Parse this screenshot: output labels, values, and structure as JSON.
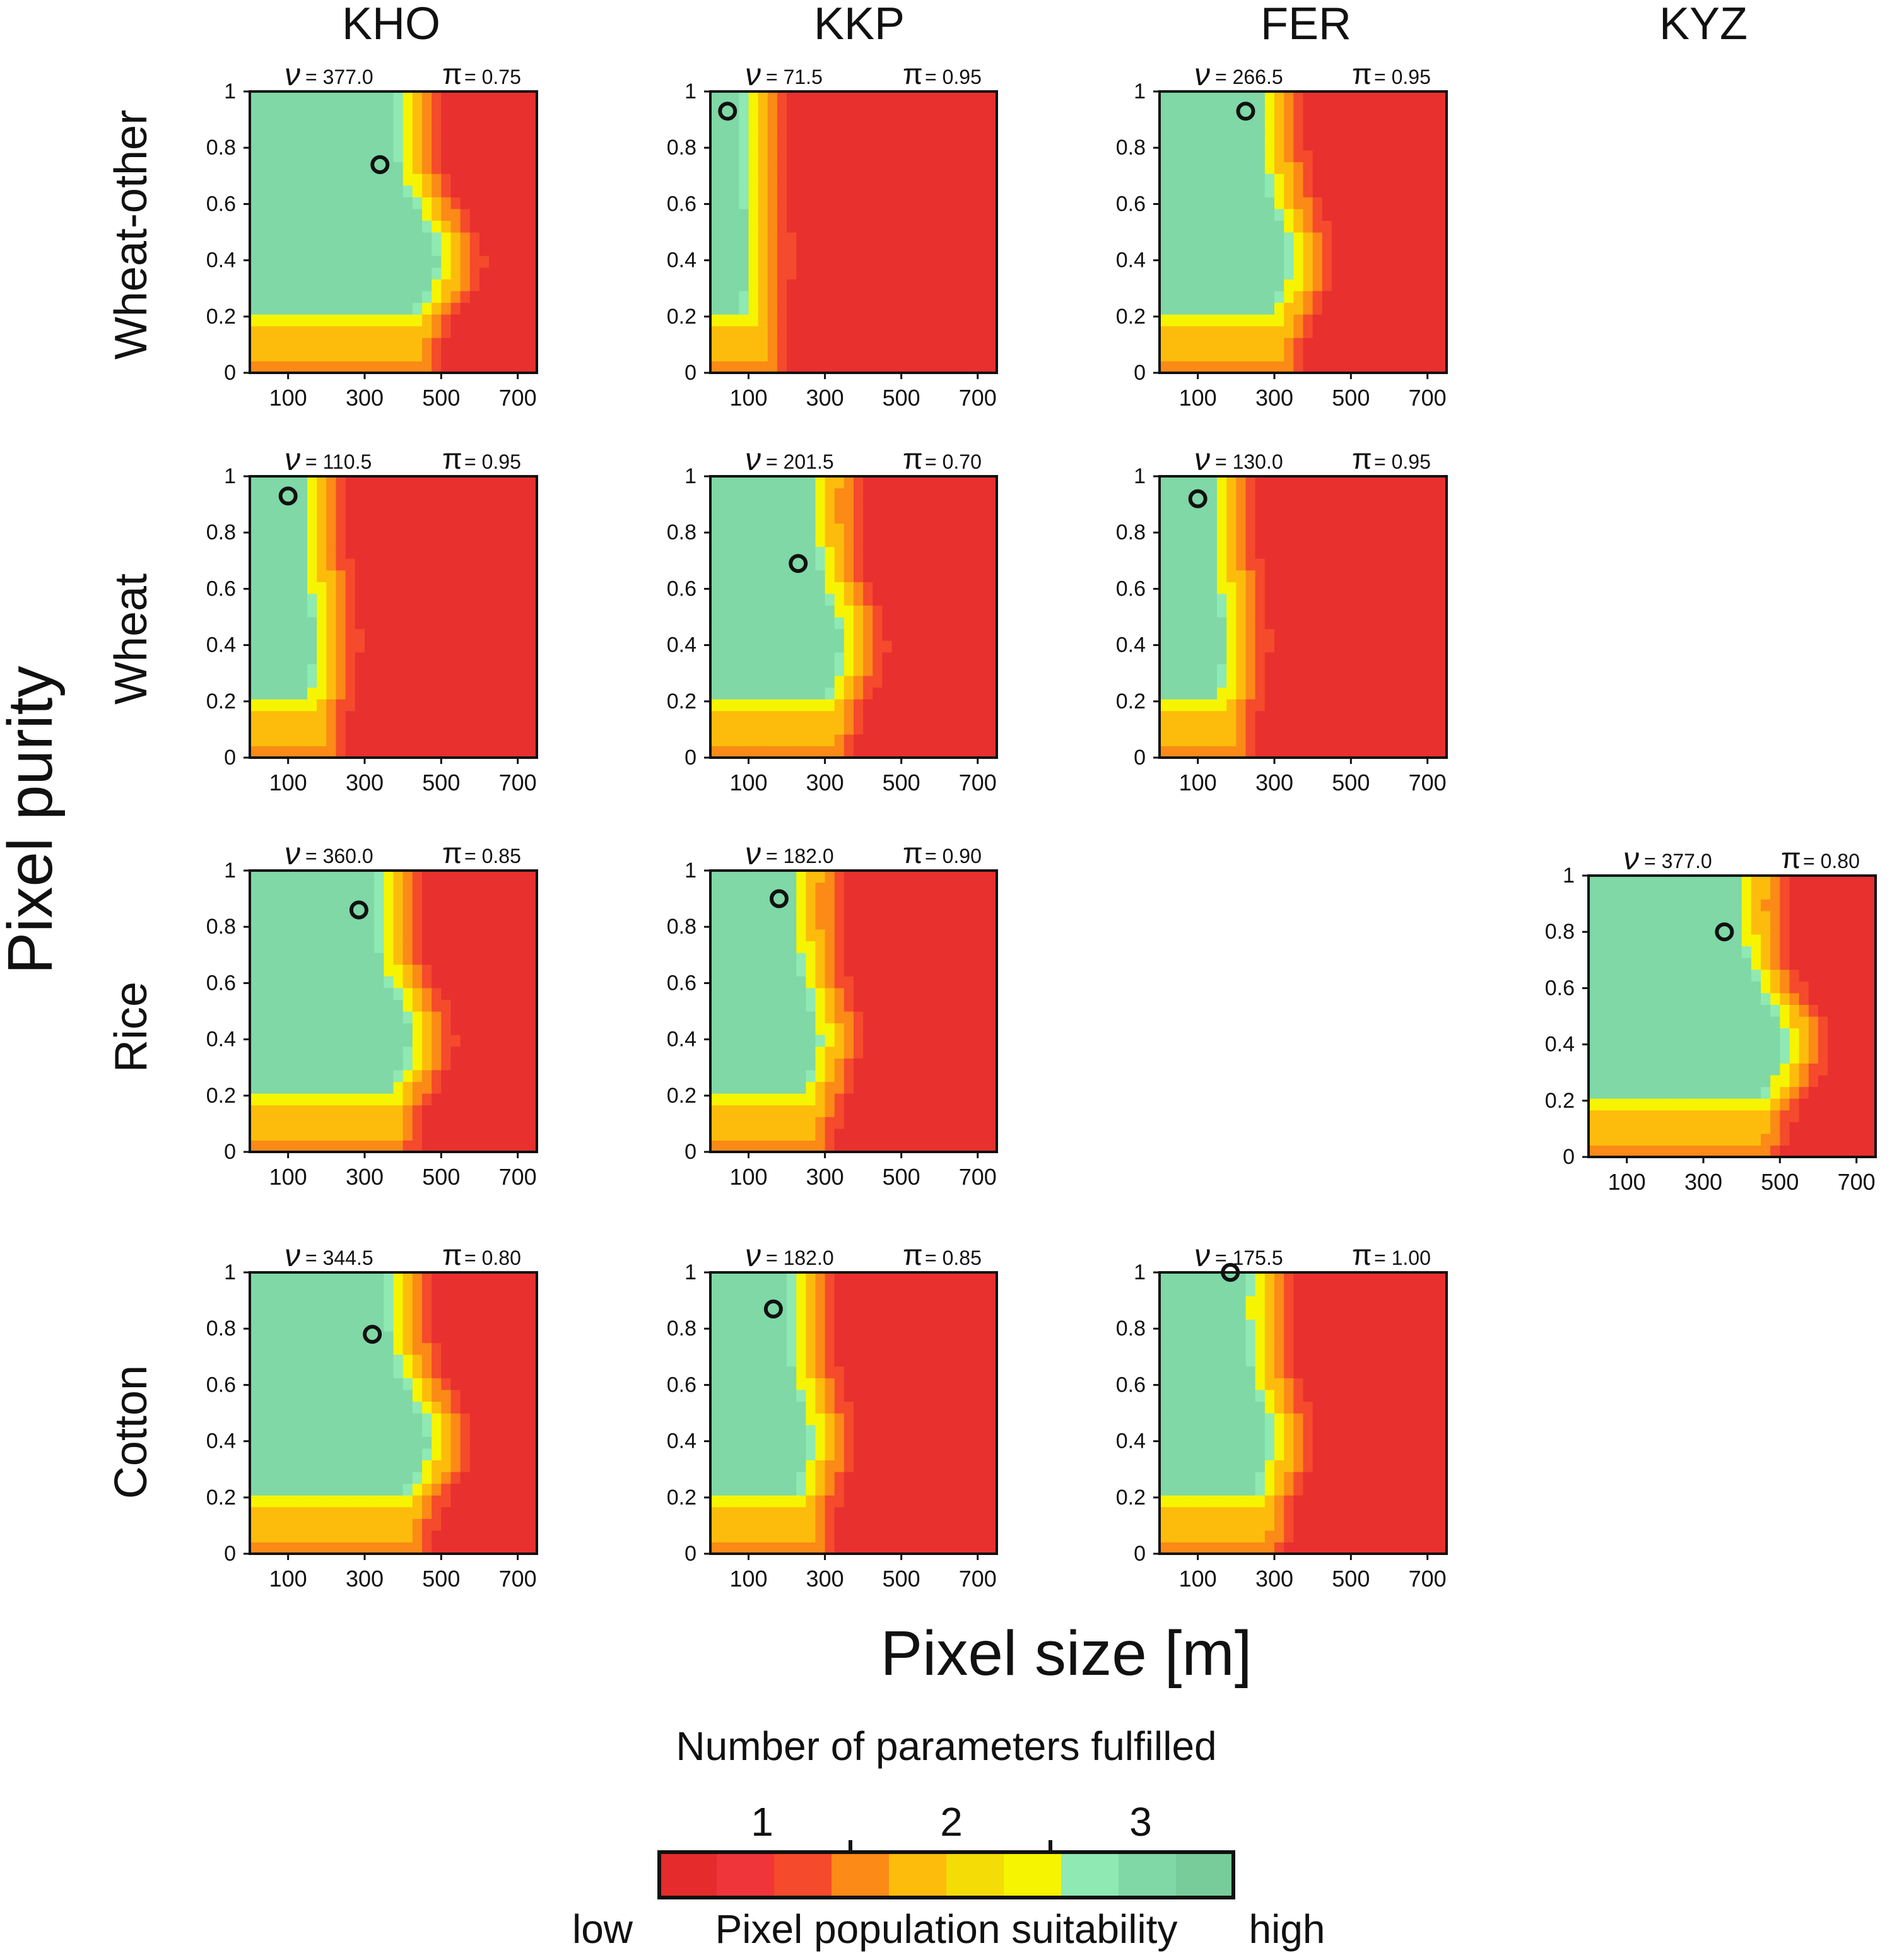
{
  "figure": {
    "ylabel": "Pixel purity",
    "xlabel": "Pixel size [m]",
    "columns": [
      "KHO",
      "KKP",
      "FER",
      "KYZ"
    ],
    "rows": [
      "Wheat-other",
      "Wheat",
      "Rice",
      "Cotton"
    ],
    "nu_symbol": "ν",
    "pi_symbol": "π",
    "x_ticks": [
      "100",
      "300",
      "500",
      "700"
    ],
    "y_ticks": [
      "0",
      "0.2",
      "0.4",
      "0.6",
      "0.8",
      "1"
    ]
  },
  "legend": {
    "title": "Number of parameters fulfilled",
    "counts": [
      "1",
      "2",
      "3"
    ],
    "low_label": "low",
    "mid_label": "Pixel population suitability",
    "high_label": "high",
    "colors": [
      "#e52b2b",
      "#f0353a",
      "#f54a2c",
      "#fb8a17",
      "#fdbc0c",
      "#f4dc07",
      "#f6f400",
      "#8ee9b3",
      "#7fd8a6",
      "#78cc99"
    ]
  },
  "chart_data": [
    {
      "type": "heatmap",
      "column": "KHO",
      "row": "Wheat-other",
      "nu": "= 377.0",
      "pi": "= 0.75",
      "optimum": {
        "x": 340,
        "y": 0.74
      },
      "xlim": [
        0,
        750
      ],
      "ylim": [
        0,
        1
      ]
    },
    {
      "type": "heatmap",
      "column": "KKP",
      "row": "Wheat-other",
      "nu": "= 71.5",
      "pi": "= 0.95",
      "optimum": {
        "x": 45,
        "y": 0.93
      },
      "xlim": [
        0,
        750
      ],
      "ylim": [
        0,
        1
      ]
    },
    {
      "type": "heatmap",
      "column": "FER",
      "row": "Wheat-other",
      "nu": "= 266.5",
      "pi": "= 0.95",
      "optimum": {
        "x": 225,
        "y": 0.93
      },
      "xlim": [
        0,
        750
      ],
      "ylim": [
        0,
        1
      ]
    },
    {
      "type": "heatmap",
      "column": "KHO",
      "row": "Wheat",
      "nu": "= 110.5",
      "pi": "= 0.95",
      "optimum": {
        "x": 100,
        "y": 0.93
      },
      "xlim": [
        0,
        750
      ],
      "ylim": [
        0,
        1
      ]
    },
    {
      "type": "heatmap",
      "column": "KKP",
      "row": "Wheat",
      "nu": "= 201.5",
      "pi": "= 0.70",
      "optimum": {
        "x": 230,
        "y": 0.69
      },
      "xlim": [
        0,
        750
      ],
      "ylim": [
        0,
        1
      ]
    },
    {
      "type": "heatmap",
      "column": "FER",
      "row": "Wheat",
      "nu": "= 130.0",
      "pi": "= 0.95",
      "optimum": {
        "x": 100,
        "y": 0.92
      },
      "xlim": [
        0,
        750
      ],
      "ylim": [
        0,
        1
      ]
    },
    {
      "type": "heatmap",
      "column": "KHO",
      "row": "Rice",
      "nu": "= 360.0",
      "pi": "= 0.85",
      "optimum": {
        "x": 285,
        "y": 0.86
      },
      "xlim": [
        0,
        750
      ],
      "ylim": [
        0,
        1
      ]
    },
    {
      "type": "heatmap",
      "column": "KKP",
      "row": "Rice",
      "nu": "= 182.0",
      "pi": "= 0.90",
      "optimum": {
        "x": 180,
        "y": 0.9
      },
      "xlim": [
        0,
        750
      ],
      "ylim": [
        0,
        1
      ]
    },
    {
      "type": "heatmap",
      "column": "KYZ",
      "row": "Rice",
      "nu": "= 377.0",
      "pi": "= 0.80",
      "optimum": {
        "x": 355,
        "y": 0.8
      },
      "xlim": [
        0,
        750
      ],
      "ylim": [
        0,
        1
      ]
    },
    {
      "type": "heatmap",
      "column": "KHO",
      "row": "Cotton",
      "nu": "= 344.5",
      "pi": "= 0.80",
      "optimum": {
        "x": 320,
        "y": 0.78
      },
      "xlim": [
        0,
        750
      ],
      "ylim": [
        0,
        1
      ]
    },
    {
      "type": "heatmap",
      "column": "KKP",
      "row": "Cotton",
      "nu": "= 182.0",
      "pi": "= 0.85",
      "optimum": {
        "x": 165,
        "y": 0.87
      },
      "xlim": [
        0,
        750
      ],
      "ylim": [
        0,
        1
      ]
    },
    {
      "type": "heatmap",
      "column": "FER",
      "row": "Cotton",
      "nu": "= 175.5",
      "pi": "= 1.00",
      "optimum": {
        "x": 185,
        "y": 1.0
      },
      "xlim": [
        0,
        750
      ],
      "ylim": [
        0,
        1
      ]
    }
  ]
}
